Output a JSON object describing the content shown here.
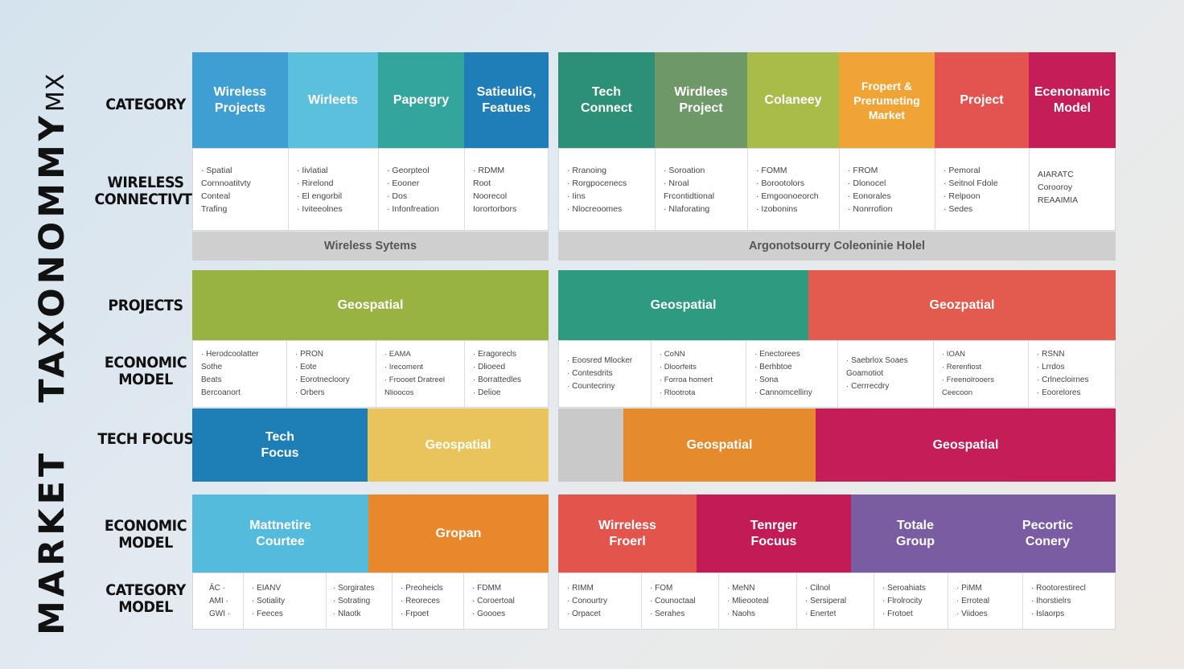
{
  "title": {
    "main": "MARKET",
    "second": "TAXONOMMY",
    "suffix": "MX"
  },
  "row_labels": {
    "category": "CATEGORY",
    "wireless": "WIRELESS CONNECTIVTY",
    "projects": "PROJECTS",
    "economic1": "ECONOMIC MODEL",
    "tech_focus": "TECH FOCUS",
    "economic2": "ECONOMIC MODEL",
    "category_model": "CATEGORY MODEL"
  },
  "bands": {
    "left": "Wireless Sytems",
    "right": "Argonotsourry Coleoninie Holel"
  },
  "colors": {
    "blue": "#2a8fc9",
    "sky": "#5bc0dc",
    "teal": "#2e9e96",
    "deepblue": "#1e79b5",
    "green": "#2e8f78",
    "olive": "#739a6c",
    "lime": "#a9bb49",
    "orange": "#ee9a34",
    "red": "#e2554f",
    "magenta": "#c21b55",
    "purple": "#7a53a3",
    "yellow": "#e6c14c",
    "grass": "#99b342",
    "gray": "#c9c9c9"
  },
  "row1": {
    "headers": [
      {
        "label": "Wireless\nProjects",
        "color": "#3f9fd3"
      },
      {
        "label": "Wirleets",
        "color": "#5bc0dc"
      },
      {
        "label": "Papergry",
        "color": "#34a59c"
      },
      {
        "label": "SatieuliG,\nFeatues",
        "color": "#1f7db8"
      },
      {
        "label": "Tech\nConnect",
        "color": "#2c9077"
      },
      {
        "label": "Wirdlees\nProject",
        "color": "#6f9868"
      },
      {
        "label": "Colaneey",
        "color": "#a9bb49"
      },
      {
        "label": "Fropert &\nPrerumeting\nMarket",
        "color": "#f0a436"
      },
      {
        "label": "Project",
        "color": "#e35450"
      },
      {
        "label": "Ecenonamic\nModel",
        "color": "#c41d58"
      }
    ],
    "lists": [
      [
        "· Spatial",
        "  Cornnoatitvty",
        "  Conteal",
        "  Trafing"
      ],
      [
        "· Iivlatial",
        "· Rirelond",
        "· El engorbil",
        "· Iviteeolnes"
      ],
      [
        "· Georpteol",
        "· Eooner",
        "· Dos",
        "· Infonfreation"
      ],
      [
        "· RDMM",
        "  Root",
        "  Noorecol",
        "  Iorortorbors"
      ],
      [
        "· Rranoing",
        "· Rorgpocenecs",
        "· Iins",
        "· Nlocreoomes"
      ],
      [
        "· Soroation",
        "· Nroal",
        "  Frcontidtional",
        "· Nlaforating"
      ],
      [
        "· FOMM",
        "· Borootolors",
        "· Emgoonoeorch",
        "· Izobonins"
      ],
      [
        "· FROM",
        "· Dlonocel",
        "· Eonorales",
        "· Nonrrofion"
      ],
      [
        "· Pemoral",
        "· Seitnol Fdole",
        "· Relpoon",
        "· Sedes"
      ],
      [
        "  AIARATC",
        "  Corooroy",
        "  REAAIMIA"
      ]
    ]
  },
  "row2": {
    "blocks": [
      {
        "label": "Geospatial",
        "color": "#99b342"
      },
      {
        "label": "Geospatial",
        "color": "#2e9a80"
      },
      {
        "label": "Geozpatial",
        "color": "#e35a4f"
      }
    ],
    "lists": [
      [
        "· Herodcoolatter",
        "  Sothe",
        "  Beats",
        "  Bercoanort"
      ],
      [
        "· PRON",
        "· Eote",
        "· Eorotnecloory",
        "· Orbers"
      ],
      [
        "· EAMA",
        "· Irecoment",
        "· Froooet Dratreel",
        "  Nlioocos"
      ],
      [
        "· Eragorecls",
        "· Dlioeed",
        "· Borrattedles",
        "· Delioe"
      ],
      [
        "· Eoosred Mlocker",
        "· Contesdrits",
        "· Countecriny"
      ],
      [
        "· CoNN",
        "· Dloorfeits",
        "· Forroa homert",
        "· Rlootrota"
      ],
      [
        "· Enectorees",
        "· Berhbtoe",
        "· Sona",
        "· Cannomcelliny"
      ],
      [
        "· Saebrlox Soaes",
        "  Goamotiot",
        "· Cerrrecdry"
      ],
      [
        "· IOAN",
        "· Rerenfiost",
        "· Freenolrooers",
        "  Ceecoon"
      ],
      [
        "· RSNN",
        "· Lrrdos",
        "· Crlnecloirnes",
        "· Eoorelores"
      ]
    ]
  },
  "row3": {
    "blocks": [
      {
        "label": "Tech\nFocus",
        "color": "#1e7fb6"
      },
      {
        "label": "Geospatial",
        "color": "#e8c45a"
      },
      {
        "label": "",
        "color": "#c9c9c9"
      },
      {
        "label": "Geospatial",
        "color": "#e58a2d"
      },
      {
        "label": "Geospatial",
        "color": "#c41d58"
      }
    ]
  },
  "row4": {
    "blocks": [
      {
        "label": "Mattnetire\nCourtee",
        "color": "#55bbdc"
      },
      {
        "label": "Gropan",
        "color": "#e8872c"
      },
      {
        "label": "Wirreless\nFroerl",
        "color": "#e3554c"
      },
      {
        "label": "Tenrger\nFocuus",
        "color": "#c21b55"
      },
      {
        "label": "Totale\nGroup",
        "color": "#7a5ca3"
      },
      {
        "label": "Pecortic\nConery",
        "color": "#7a5ca3"
      }
    ],
    "lists": [
      [
        "ĀC  ·",
        "AMI  ·",
        "GWI  ·"
      ],
      [
        "· EIANV",
        "· Sotiality",
        "· Feeces"
      ],
      [
        "· Sorgirates",
        "· Sotrating",
        "· Nlaotk"
      ],
      [
        "· Preoheicls",
        "· Reoreces",
        "· Frpoet"
      ],
      [
        "· FDMM",
        "· Coroertoal",
        "· Goooes"
      ],
      [
        "· RIMM",
        "· Conourtry",
        "· Orpacet"
      ],
      [
        "· FOM",
        "· Counoctaal",
        "· Serahes"
      ],
      [
        "· MeNN",
        "· Mlieooteal",
        "· Naohs"
      ],
      [
        "· Cilnol",
        "· Sersiperal",
        "· Enertet"
      ],
      [
        "· Seroahiats",
        "· Flrolrocity",
        "· Frotoet"
      ],
      [
        "· PiMM",
        "· Erroteal",
        "· Viidoes"
      ],
      [
        "· Rootorestirecl",
        "· Ihorstielrs",
        "· Islaorps"
      ]
    ]
  }
}
